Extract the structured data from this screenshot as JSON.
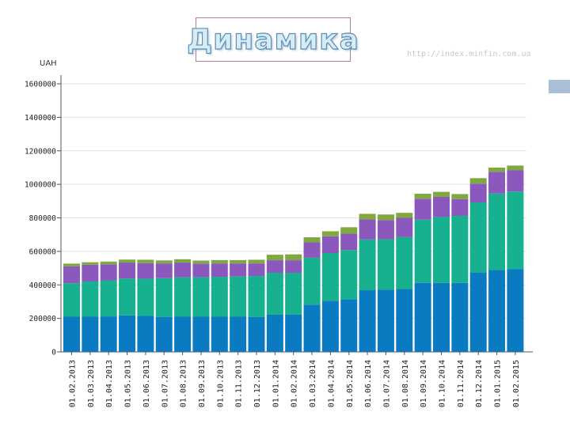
{
  "title": "Динамика",
  "watermark": "http://index.minfin.com.ua",
  "chart_data": {
    "type": "bar",
    "stacked": true,
    "ylabel": "UAH",
    "ylim": [
      0,
      1600000
    ],
    "yticks": [
      0,
      200000,
      400000,
      600000,
      800000,
      1000000,
      1200000,
      1400000,
      1600000
    ],
    "ytick_labels": [
      "0",
      "200000",
      "400000",
      "600000",
      "800000",
      "1000000",
      "1200000",
      "1400000",
      "1600000"
    ],
    "grid": true,
    "categories": [
      "01.02.2013",
      "01.03.2013",
      "01.04.2013",
      "01.05.2013",
      "01.06.2013",
      "01.07.2013",
      "01.08.2013",
      "01.09.2013",
      "01.10.2013",
      "01.11.2013",
      "01.12.2013",
      "01.01.2014",
      "01.02.2014",
      "01.03.2014",
      "01.04.2014",
      "01.05.2014",
      "01.06.2014",
      "01.07.2014",
      "01.08.2014",
      "01.09.2014",
      "01.10.2014",
      "01.11.2014",
      "01.12.2014",
      "01.01.2015",
      "01.02.2015"
    ],
    "series": [
      {
        "color": "#0a7bc1",
        "values": [
          210000,
          210000,
          212000,
          218000,
          215000,
          208000,
          210000,
          210000,
          210000,
          210000,
          208000,
          222000,
          222000,
          282000,
          305000,
          315000,
          368000,
          372000,
          375000,
          412000,
          412000,
          412000,
          475000,
          490000,
          495000
        ]
      },
      {
        "color": "#17b18f",
        "values": [
          200000,
          210000,
          215000,
          220000,
          222000,
          232000,
          235000,
          235000,
          238000,
          240000,
          245000,
          250000,
          250000,
          280000,
          285000,
          293000,
          303000,
          300000,
          310000,
          377000,
          393000,
          400000,
          417000,
          455000,
          462000
        ]
      },
      {
        "color": "#8b58be",
        "values": [
          100000,
          100000,
          95000,
          95000,
          93000,
          88000,
          88000,
          82000,
          80000,
          78000,
          75000,
          75000,
          75000,
          92000,
          100000,
          98000,
          120000,
          115000,
          115000,
          125000,
          120000,
          100000,
          112000,
          130000,
          128000
        ]
      },
      {
        "color": "#7fa93e",
        "values": [
          17000,
          15000,
          17000,
          18000,
          20000,
          18000,
          20000,
          18000,
          20000,
          20000,
          22000,
          33000,
          35000,
          30000,
          30000,
          38000,
          33000,
          33000,
          30000,
          30000,
          30000,
          30000,
          33000,
          25000,
          27000
        ]
      }
    ]
  }
}
